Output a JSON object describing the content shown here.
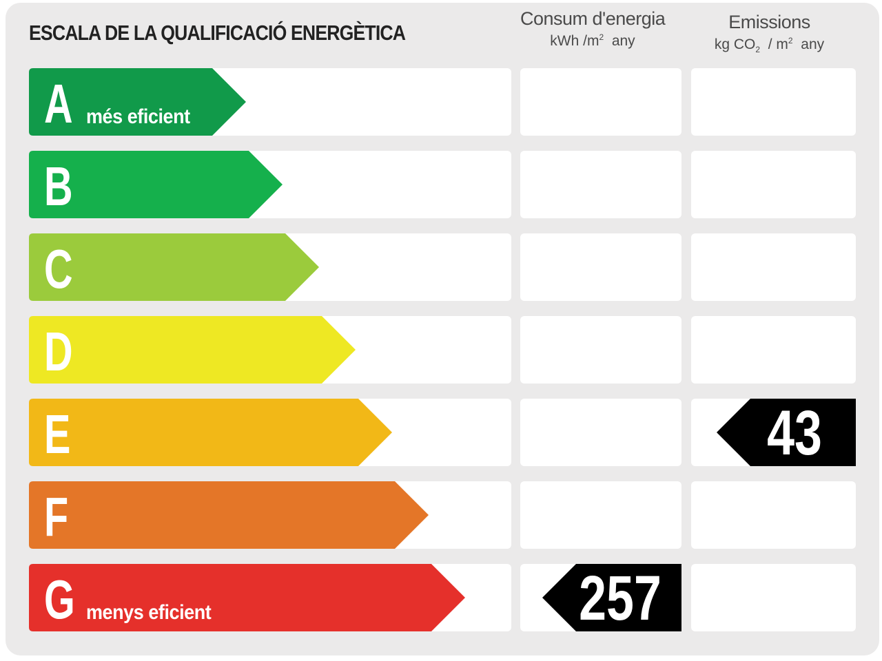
{
  "chart_data": {
    "type": "table",
    "title": "ESCALA DE LA QUALIFICACIÓ ENERGÈTICA",
    "columns": [
      {
        "label": "Consum d'energia",
        "unit_prefix": "kWh /m",
        "unit_sup": "2",
        "unit_suffix": "any"
      },
      {
        "label": "Emissions",
        "unit_prefix": "kg CO",
        "unit_sub": "2",
        "unit_mid": "/ m",
        "unit_sup": "2",
        "unit_suffix": "any"
      }
    ],
    "classes": [
      {
        "letter": "A",
        "note": "més eficient",
        "color": "#119a4a"
      },
      {
        "letter": "B",
        "note": "",
        "color": "#15b04c"
      },
      {
        "letter": "C",
        "note": "",
        "color": "#9bcb3c"
      },
      {
        "letter": "D",
        "note": "",
        "color": "#eee823"
      },
      {
        "letter": "E",
        "note": "",
        "color": "#f2b817"
      },
      {
        "letter": "F",
        "note": "",
        "color": "#e47628"
      },
      {
        "letter": "G",
        "note": "menys eficient",
        "color": "#e5302b"
      }
    ],
    "ratings": {
      "consum": {
        "class": "G",
        "value": "257"
      },
      "emissions": {
        "class": "E",
        "value": "43"
      }
    }
  }
}
